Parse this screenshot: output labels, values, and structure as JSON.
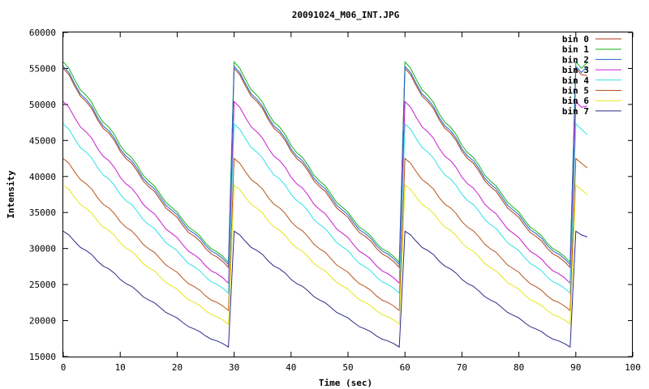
{
  "chart_data": {
    "type": "line",
    "title": "20091024_M06_INT.JPG",
    "xlabel": "Time (sec)",
    "ylabel": "Intensity",
    "xlim": [
      0,
      100
    ],
    "ylim": [
      15000,
      60000
    ],
    "xticks": [
      "0",
      "10",
      "20",
      "30",
      "40",
      "50",
      "60",
      "70",
      "80",
      "90",
      "100"
    ],
    "yticks": [
      "15000",
      "20000",
      "25000",
      "30000",
      "35000",
      "40000",
      "45000",
      "50000",
      "55000",
      "60000"
    ],
    "grid": false,
    "legend_position": "top-right",
    "period_sec": 30,
    "x_max": 92,
    "series": [
      {
        "name": "bin 0",
        "color": "#b03a17",
        "start": 55000,
        "end": 27500,
        "drop_at_0": 0,
        "final": 54000
      },
      {
        "name": "bin 1",
        "color": "#16b11a",
        "start": 55900,
        "end": 28200,
        "drop_at_0": 0,
        "final": 55800
      },
      {
        "name": "bin 2",
        "color": "#1f66c9",
        "start": 55300,
        "end": 27900,
        "drop_at_0": 0,
        "final": 55300
      },
      {
        "name": "bin 3",
        "color": "#c81ad1",
        "start": 50400,
        "end": 25300,
        "drop_at_0": 0,
        "final": 49800
      },
      {
        "name": "bin 4",
        "color": "#2ee1e8",
        "start": 47300,
        "end": 23900,
        "drop_at_0": 0,
        "final": 45800
      },
      {
        "name": "bin 5",
        "color": "#b8541a",
        "start": 42500,
        "end": 21500,
        "drop_at_0": 0,
        "final": 41200
      },
      {
        "name": "bin 6",
        "color": "#e6e61a",
        "start": 38800,
        "end": 19600,
        "drop_at_0": 0,
        "final": 37500
      },
      {
        "name": "bin 7",
        "color": "#2a2a8a",
        "start": 32400,
        "end": 16400,
        "drop_at_0": 0,
        "final": 31600
      }
    ]
  }
}
